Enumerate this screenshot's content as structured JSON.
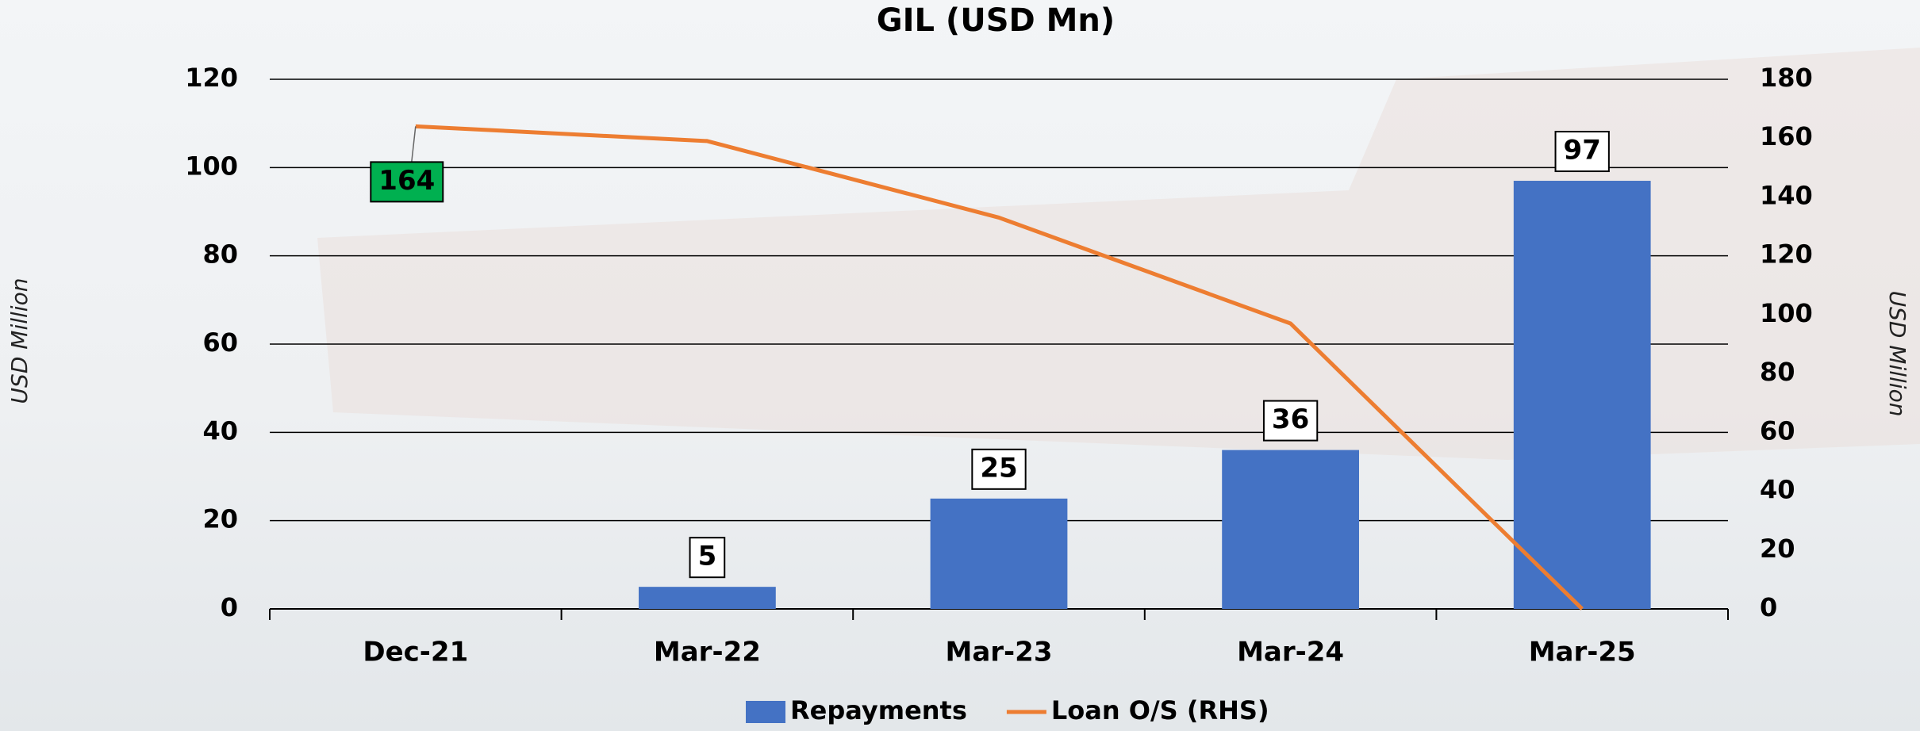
{
  "chart_data": {
    "type": "combo",
    "title": "GIL (USD Mn)",
    "y_label": "USD Million",
    "y2_label": "USD Million",
    "categories": [
      "Dec-21",
      "Mar-22",
      "Mar-23",
      "Mar-24",
      "Mar-25"
    ],
    "series": [
      {
        "name": "Repayments",
        "type": "bar",
        "color": "#4472c4",
        "values": [
          null,
          5,
          25,
          36,
          97
        ],
        "data_labels": true
      },
      {
        "name": "Loan O/S (RHS)",
        "type": "line",
        "axis": "y2",
        "color": "#ed7d31",
        "values": [
          164,
          159,
          133,
          97,
          0
        ],
        "value_labels": [
          "164",
          null,
          null,
          null,
          null
        ],
        "label_color": "#00b050"
      }
    ],
    "ylim": [
      0,
      120
    ],
    "yticks": [
      0,
      20,
      40,
      60,
      80,
      100,
      120
    ],
    "y2lim": [
      0,
      180
    ],
    "y2ticks": [
      0,
      20,
      40,
      60,
      80,
      100,
      120,
      140,
      160,
      180
    ],
    "grid": true,
    "legend": "bottom"
  }
}
